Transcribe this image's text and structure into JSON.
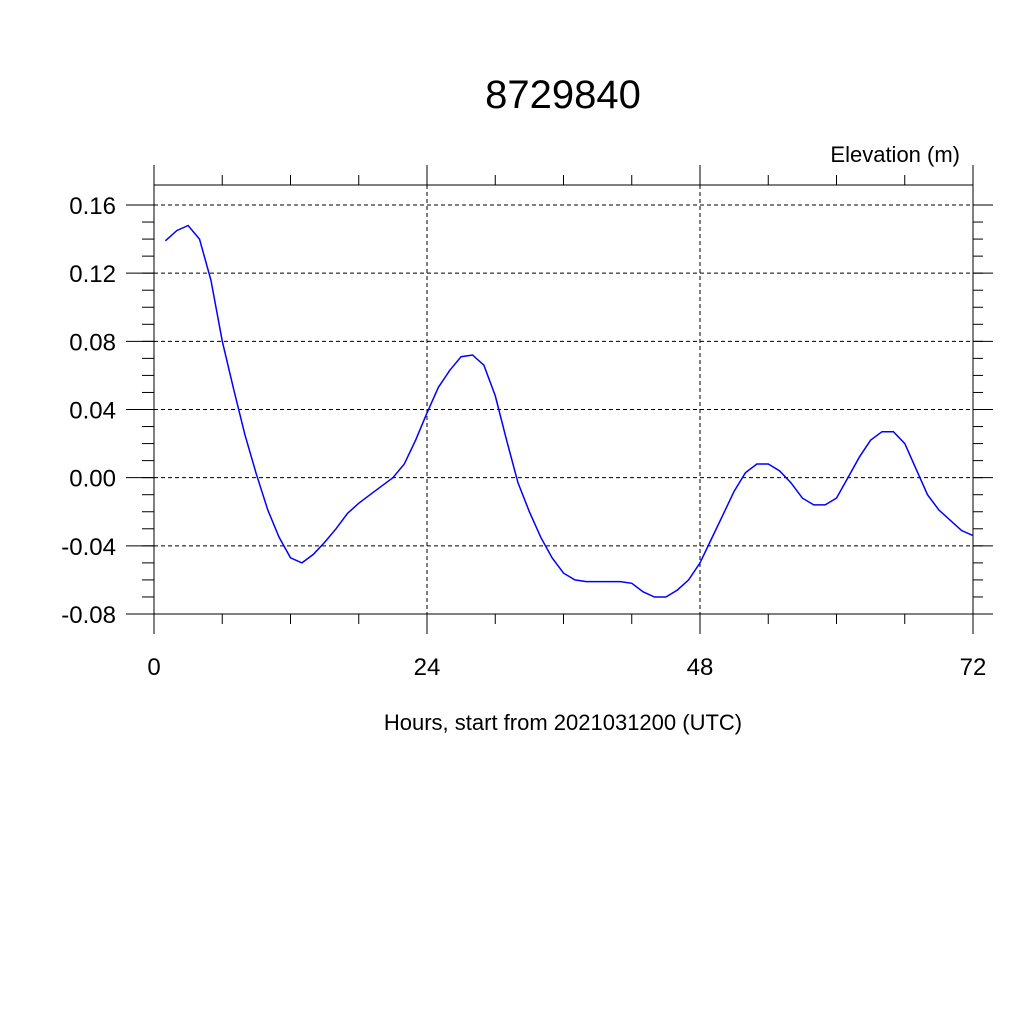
{
  "chart_data": {
    "type": "line",
    "title": "8729840",
    "ylabel": "Elevation (m)",
    "xlabel": "Hours, start from 2021031200 (UTC)",
    "xlim": [
      0,
      72
    ],
    "ylim": [
      -0.08,
      0.16
    ],
    "xticks": [
      0,
      24,
      48,
      72
    ],
    "xtick_labels": [
      "0",
      "24",
      "48",
      "72"
    ],
    "yticks": [
      -0.08,
      -0.04,
      0.0,
      0.04,
      0.08,
      0.12,
      0.16
    ],
    "ytick_labels": [
      "-0.08",
      "-0.04",
      "0.00",
      "0.04",
      "0.08",
      "0.12",
      "0.16"
    ],
    "grid": true,
    "series_color": "#0000ff",
    "series": [
      {
        "x": [
          1,
          2,
          3,
          4,
          5,
          6,
          7,
          8,
          9,
          10,
          11,
          12,
          13,
          14,
          15,
          16,
          17,
          18,
          19,
          20,
          21,
          22,
          23,
          24,
          25,
          26,
          27,
          28,
          29,
          30,
          31,
          32,
          33,
          34,
          35,
          36,
          37,
          38,
          39,
          40,
          41,
          42,
          43,
          44,
          45,
          46,
          47,
          48,
          49,
          50,
          51,
          52,
          53,
          54,
          55,
          56,
          57,
          58,
          59,
          60,
          61,
          62,
          63,
          64,
          65,
          66,
          67,
          68,
          69,
          70,
          71,
          72
        ],
        "values": [
          0.139,
          0.145,
          0.148,
          0.14,
          0.116,
          0.08,
          0.052,
          0.025,
          0.002,
          -0.019,
          -0.035,
          -0.047,
          -0.05,
          -0.045,
          -0.038,
          -0.03,
          -0.021,
          -0.015,
          -0.01,
          -0.005,
          0.0,
          0.008,
          0.022,
          0.038,
          0.053,
          0.063,
          0.071,
          0.072,
          0.066,
          0.048,
          0.022,
          -0.003,
          -0.02,
          -0.035,
          -0.047,
          -0.056,
          -0.06,
          -0.061,
          -0.061,
          -0.061,
          -0.061,
          -0.062,
          -0.067,
          -0.07,
          -0.07,
          -0.066,
          -0.06,
          -0.05,
          -0.036,
          -0.022,
          -0.008,
          0.003,
          0.008,
          0.008,
          0.004,
          -0.003,
          -0.012,
          -0.016,
          -0.016,
          -0.012,
          0.0,
          0.012,
          0.022,
          0.027,
          0.027,
          0.02,
          0.005,
          -0.01,
          -0.019,
          -0.025,
          -0.031,
          -0.034
        ]
      }
    ]
  }
}
